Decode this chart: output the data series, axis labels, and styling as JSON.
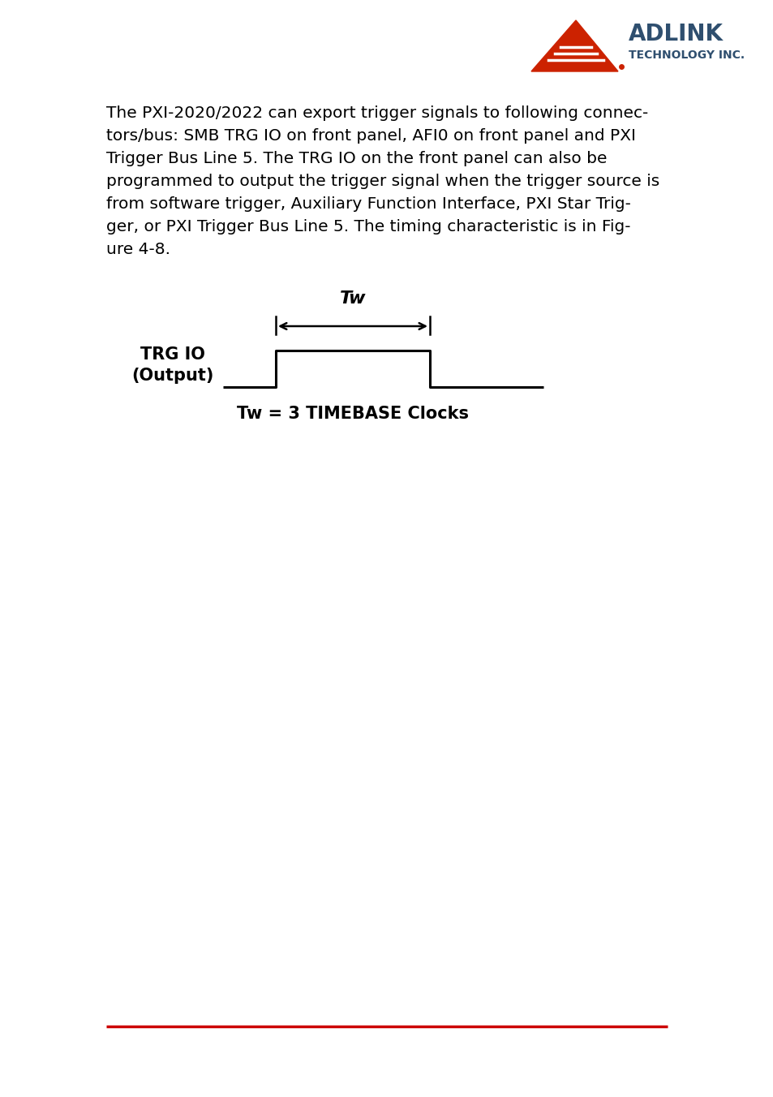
{
  "background_color": "#ffffff",
  "body_text": "The PXI-2020/2022 can export trigger signals to following connec-\ntors/bus: SMB TRG IO on front panel, AFI0 on front panel and PXI\nTrigger Bus Line 5. The TRG IO on the front panel can also be\nprogrammed to output the trigger signal when the trigger source is\nfrom software trigger, Auxiliary Function Interface, PXI Star Trig-\nger, or PXI Trigger Bus Line 5. The timing characteristic is in Fig-\nure 4-8.",
  "body_fontsize": 14.5,
  "signal_label_line1": "TRG IO",
  "signal_label_line2": "(Output)",
  "tw_label": "Tw",
  "tw_label_fontsize": 16,
  "caption_text": "Tw = 3 TIMEBASE Clocks",
  "caption_fontsize": 15,
  "footer_line_color": "#cc0000",
  "adlink_red": "#cc2200",
  "adlink_dark": "#2f4f6f"
}
